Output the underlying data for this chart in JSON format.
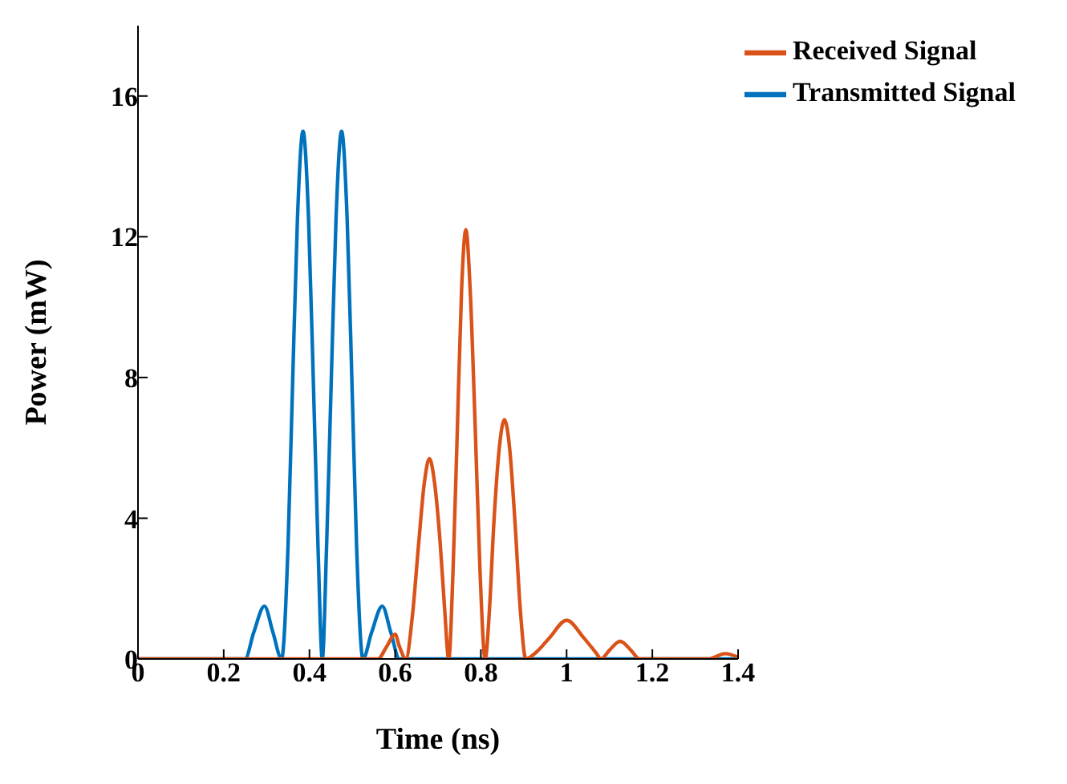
{
  "chart_data": {
    "type": "line",
    "xlabel": "Time (ns)",
    "ylabel": "Power (mW)",
    "xlim": [
      0,
      1.4
    ],
    "ylim": [
      0,
      18
    ],
    "xticks": [
      0,
      0.2,
      0.4,
      0.6,
      0.8,
      1,
      1.2,
      1.4
    ],
    "yticks": [
      0,
      4,
      8,
      12,
      16
    ],
    "grid": false,
    "legend": "top right",
    "marker": "none",
    "line_style": "solid",
    "series": [
      {
        "name": "Transmitted Signal",
        "color": "#0072bd",
        "x": [
          0,
          0.25,
          0.27,
          0.295,
          0.315,
          0.335,
          0.35,
          0.36,
          0.372,
          0.385,
          0.398,
          0.41,
          0.42,
          0.43,
          0.44,
          0.45,
          0.462,
          0.475,
          0.488,
          0.5,
          0.51,
          0.525,
          0.545,
          0.57,
          0.59,
          0.61,
          1.4
        ],
        "values": [
          0,
          0,
          0.75,
          1.5,
          0.75,
          0,
          3.2,
          7.5,
          12.5,
          15,
          12.5,
          7.5,
          3.2,
          0,
          3.2,
          7.5,
          12.5,
          15,
          12.5,
          7.5,
          3.2,
          0,
          0.75,
          1.5,
          0.75,
          0,
          0
        ]
      },
      {
        "name": "Received Signal",
        "color": "#d95319",
        "x": [
          0,
          0.56,
          0.58,
          0.6,
          0.61,
          0.625,
          0.64,
          0.655,
          0.668,
          0.68,
          0.692,
          0.705,
          0.715,
          0.725,
          0.735,
          0.745,
          0.755,
          0.765,
          0.775,
          0.787,
          0.798,
          0.81,
          0.82,
          0.83,
          0.843,
          0.855,
          0.867,
          0.88,
          0.892,
          0.905,
          0.93,
          0.96,
          1,
          1.04,
          1.07,
          1.08,
          1.1,
          1.125,
          1.15,
          1.17,
          1.33,
          1.37,
          1.4
        ],
        "values": [
          0,
          0,
          0.35,
          0.7,
          0.35,
          0,
          1.2,
          3.3,
          5,
          5.7,
          5,
          3.3,
          1.5,
          0,
          2.5,
          6.5,
          10.5,
          12.2,
          10.5,
          6.5,
          2.5,
          0,
          1.4,
          3.8,
          6,
          6.8,
          6,
          3.8,
          1.4,
          0,
          0.2,
          0.6,
          1.1,
          0.6,
          0.15,
          0,
          0.25,
          0.5,
          0.25,
          0,
          0,
          0.15,
          0.05
        ]
      }
    ]
  }
}
